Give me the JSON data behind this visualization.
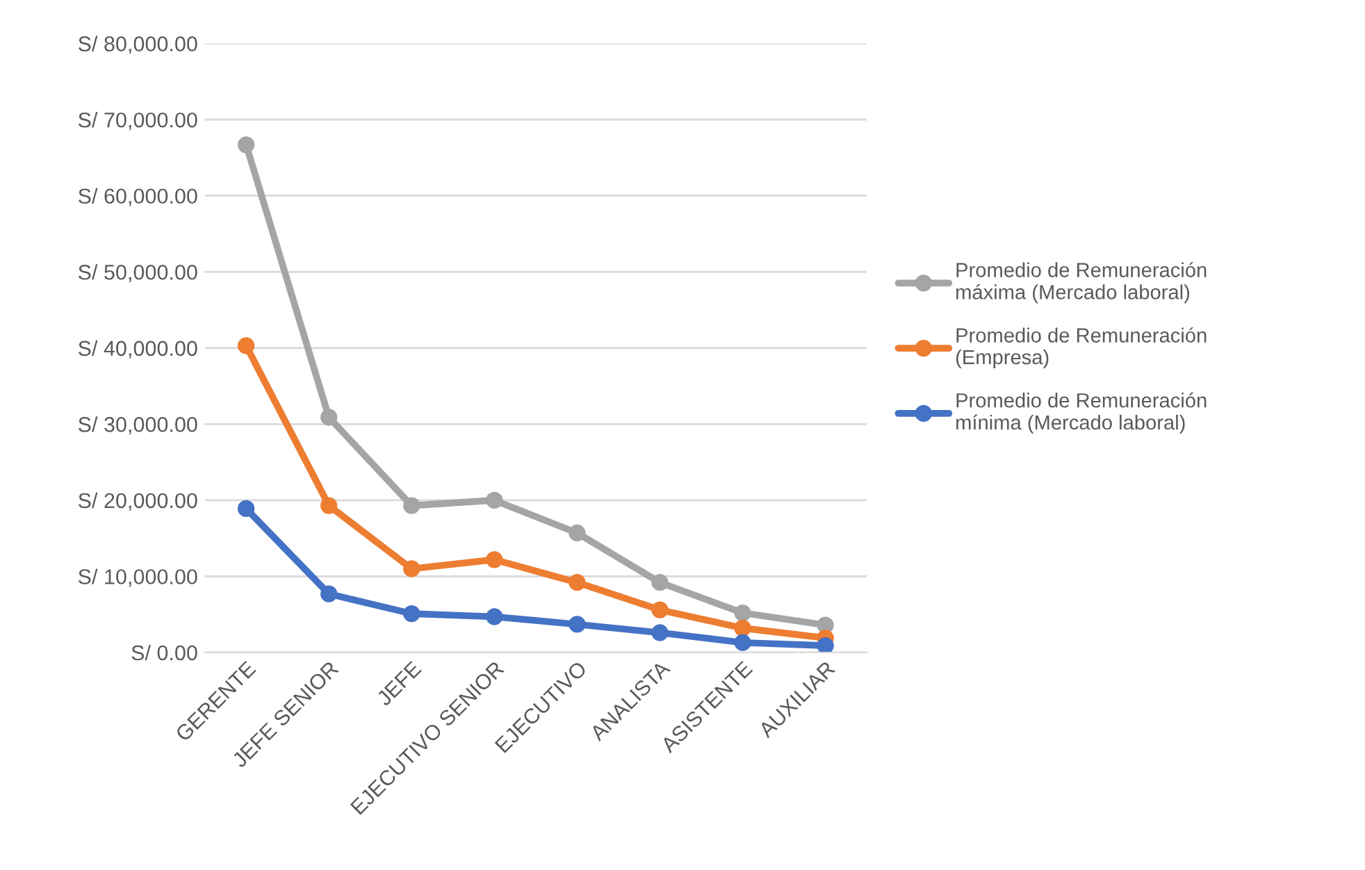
{
  "chart_data": {
    "type": "line",
    "categories": [
      "GERENTE",
      "JEFE SENIOR",
      "JEFE",
      "EJECUTIVO SENIOR",
      "EJECUTIVO",
      "ANALISTA",
      "ASISTENTE",
      "AUXILIAR"
    ],
    "series": [
      {
        "name": "Promedio de Remuneración máxima (Mercado laboral)",
        "color": "#a5a5a5",
        "values": [
          66700,
          30900,
          19300,
          20000,
          15700,
          9200,
          5200,
          3600
        ]
      },
      {
        "name": "Promedio de Remuneración (Empresa)",
        "color": "#ed7d31",
        "values": [
          40300,
          19300,
          11000,
          12200,
          9200,
          5600,
          3200,
          1900
        ]
      },
      {
        "name": "Promedio de Remuneración mínima (Mercado laboral)",
        "color": "#4472c4",
        "values": [
          18900,
          7700,
          5100,
          4700,
          3700,
          2600,
          1300,
          900
        ]
      }
    ],
    "ylim": [
      0,
      80000
    ],
    "yticks": [
      {
        "value": 0,
        "label": "S/ 0.00"
      },
      {
        "value": 10000,
        "label": "S/ 10,000.00"
      },
      {
        "value": 20000,
        "label": "S/ 20,000.00"
      },
      {
        "value": 30000,
        "label": "S/ 30,000.00"
      },
      {
        "value": 40000,
        "label": "S/ 40,000.00"
      },
      {
        "value": 50000,
        "label": "S/ 50,000.00"
      },
      {
        "value": 60000,
        "label": "S/ 60,000.00"
      },
      {
        "value": 70000,
        "label": "S/ 70,000.00"
      },
      {
        "value": 80000,
        "label": "S/ 80,000.00"
      }
    ],
    "grid": "y",
    "legend": "right",
    "marker": "circle",
    "line_style": "solid"
  }
}
